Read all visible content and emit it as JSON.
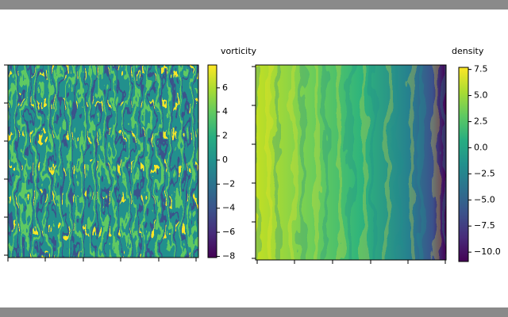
{
  "chart_data": [
    {
      "type": "heatmap",
      "colorbar_label": "vorticity",
      "colormap": "viridis",
      "ylim": [
        -8.1,
        7.9
      ],
      "yticks": [
        6,
        4,
        2,
        0,
        {
          "value": -2,
          "label": "−2"
        },
        {
          "value": -4,
          "label": "−4"
        },
        {
          "value": -6,
          "label": "−6"
        },
        {
          "value": -8,
          "label": "−8"
        }
      ]
    },
    {
      "type": "heatmap",
      "colorbar_label": "density",
      "colormap": "viridis",
      "ylim": [
        -10.9,
        7.7
      ],
      "yticks": [
        {
          "value": 7.5,
          "label": "7.5"
        },
        {
          "value": 5,
          "label": "5.0"
        },
        {
          "value": 2.5,
          "label": "2.5"
        },
        {
          "value": 0,
          "label": "0.0"
        },
        {
          "value": -2.5,
          "label": "−2.5"
        },
        {
          "value": -5,
          "label": "−5.0"
        },
        {
          "value": -7.5,
          "label": "−7.5"
        },
        {
          "value": -10,
          "label": "−10.0"
        }
      ]
    }
  ]
}
